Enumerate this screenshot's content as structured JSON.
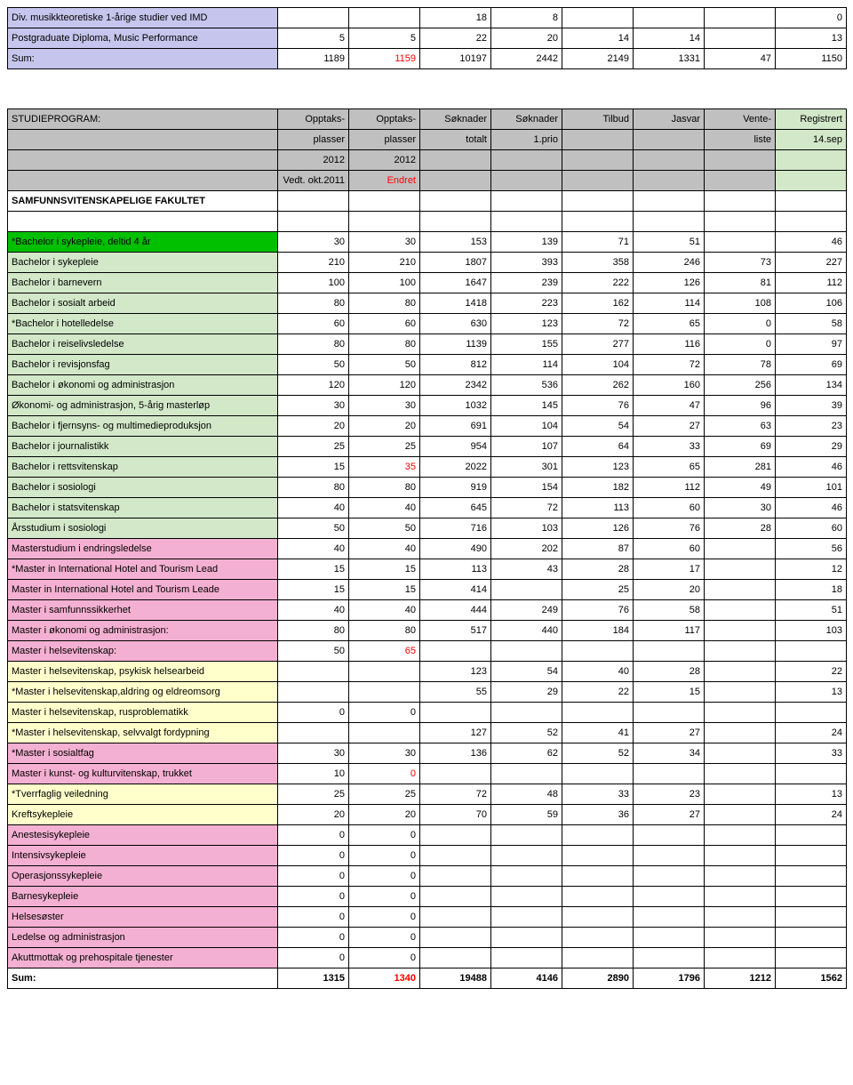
{
  "colors": {
    "lavender": "#c5c5ed",
    "grey": "#c0c0c0",
    "greenFull": "#d2e8c8",
    "greenBright": "#00c000",
    "cream": "#ffffcc",
    "pink": "#f4b0d2",
    "red": "#ff0000",
    "border": "#000000",
    "bg": "#ffffff"
  },
  "topSection": {
    "rows": [
      {
        "bg": "lavender",
        "label": "Div. musikkteoretiske 1-årige studier ved IMD",
        "cells": [
          "",
          "",
          "18",
          "8",
          "",
          "",
          "",
          "0"
        ]
      },
      {
        "bg": "lavender",
        "label": "Postgraduate Diploma, Music Performance",
        "cells": [
          "5",
          "5",
          "22",
          "20",
          "14",
          "14",
          "",
          "13"
        ]
      },
      {
        "bg": "lavender",
        "label": "Sum:",
        "cells": [
          "1189",
          "1159",
          "10197",
          "2442",
          "2149",
          "1331",
          "47",
          "1150"
        ],
        "redCols": [
          1
        ]
      }
    ]
  },
  "headerBlock": {
    "row1": {
      "label": "STUDIEPROGRAM:",
      "cells": [
        "Opptaks-",
        "Opptaks-",
        "Søknader",
        "Søknader",
        "Tilbud",
        "Jasvar",
        "Vente-",
        "Registrert"
      ]
    },
    "row2": {
      "label": "",
      "cells": [
        "plasser",
        "plasser",
        "totalt",
        "1.prio",
        "",
        "",
        "liste",
        "14.sep"
      ]
    },
    "row3": {
      "label": "",
      "cells": [
        "2012",
        "2012",
        "",
        "",
        "",
        "",
        "",
        ""
      ]
    },
    "row4": {
      "label": "",
      "cells": [
        "Vedt. okt.2011",
        "Endret",
        "",
        "",
        "",
        "",
        "",
        ""
      ]
    },
    "faculty": "SAMFUNNSVITENSKAPELIGE FAKULTET"
  },
  "mainRows": [
    {
      "bg": "green-bright",
      "label": "*Bachelor i sykepleie, deltid 4 år",
      "cells": [
        "30",
        "30",
        "153",
        "139",
        "71",
        "51",
        "",
        "46"
      ]
    },
    {
      "bg": "green-full",
      "label": "Bachelor i sykepleie",
      "cells": [
        "210",
        "210",
        "1807",
        "393",
        "358",
        "246",
        "73",
        "227"
      ]
    },
    {
      "bg": "green-full",
      "label": "Bachelor i barnevern",
      "cells": [
        "100",
        "100",
        "1647",
        "239",
        "222",
        "126",
        "81",
        "112"
      ]
    },
    {
      "bg": "green-full",
      "label": "Bachelor i sosialt arbeid",
      "cells": [
        "80",
        "80",
        "1418",
        "223",
        "162",
        "114",
        "108",
        "106"
      ]
    },
    {
      "bg": "green-full",
      "label": "*Bachelor i hotelledelse",
      "cells": [
        "60",
        "60",
        "630",
        "123",
        "72",
        "65",
        "0",
        "58"
      ]
    },
    {
      "bg": "green-full",
      "label": "Bachelor i reiselivsledelse",
      "cells": [
        "80",
        "80",
        "1139",
        "155",
        "277",
        "116",
        "0",
        "97"
      ]
    },
    {
      "bg": "green-full",
      "label": "Bachelor i revisjonsfag",
      "cells": [
        "50",
        "50",
        "812",
        "114",
        "104",
        "72",
        "78",
        "69"
      ]
    },
    {
      "bg": "green-full",
      "label": "Bachelor i økonomi og administrasjon",
      "cells": [
        "120",
        "120",
        "2342",
        "536",
        "262",
        "160",
        "256",
        "134"
      ]
    },
    {
      "bg": "green-full",
      "label": "Økonomi- og administrasjon, 5-årig masterløp",
      "cells": [
        "30",
        "30",
        "1032",
        "145",
        "76",
        "47",
        "96",
        "39"
      ]
    },
    {
      "bg": "green-full",
      "label": "Bachelor i fjernsyns- og multimedieproduksjon",
      "cells": [
        "20",
        "20",
        "691",
        "104",
        "54",
        "27",
        "63",
        "23"
      ]
    },
    {
      "bg": "green-full",
      "label": "Bachelor i journalistikk",
      "cells": [
        "25",
        "25",
        "954",
        "107",
        "64",
        "33",
        "69",
        "29"
      ]
    },
    {
      "bg": "green-full",
      "label": "Bachelor i rettsvitenskap",
      "cells": [
        "15",
        "35",
        "2022",
        "301",
        "123",
        "65",
        "281",
        "46"
      ],
      "redCols": [
        1
      ]
    },
    {
      "bg": "green-full",
      "label": "Bachelor i sosiologi",
      "cells": [
        "80",
        "80",
        "919",
        "154",
        "182",
        "112",
        "49",
        "101"
      ]
    },
    {
      "bg": "green-full",
      "label": "Bachelor i statsvitenskap",
      "cells": [
        "40",
        "40",
        "645",
        "72",
        "113",
        "60",
        "30",
        "46"
      ]
    },
    {
      "bg": "green-full",
      "label": "Årsstudium i sosiologi",
      "cells": [
        "50",
        "50",
        "716",
        "103",
        "126",
        "76",
        "28",
        "60"
      ]
    },
    {
      "bg": "pink",
      "label": "Masterstudium i endringsledelse",
      "cells": [
        "40",
        "40",
        "490",
        "202",
        "87",
        "60",
        "",
        "56"
      ]
    },
    {
      "bg": "pink",
      "label": "*Master in International Hotel and Tourism Lead",
      "cells": [
        "15",
        "15",
        "113",
        "43",
        "28",
        "17",
        "",
        "12"
      ]
    },
    {
      "bg": "pink",
      "label": "Master in International Hotel and Tourism Leade",
      "cells": [
        "15",
        "15",
        "414",
        "",
        "25",
        "20",
        "",
        "18"
      ]
    },
    {
      "bg": "pink",
      "label": "Master i samfunnssikkerhet",
      "cells": [
        "40",
        "40",
        "444",
        "249",
        "76",
        "58",
        "",
        "51"
      ]
    },
    {
      "bg": "pink",
      "label": "Master i økonomi og administrasjon:",
      "cells": [
        "80",
        "80",
        "517",
        "440",
        "184",
        "117",
        "",
        "103"
      ]
    },
    {
      "bg": "pink",
      "label": "Master i helsevitenskap:",
      "cells": [
        "50",
        "65",
        "",
        "",
        "",
        "",
        "",
        ""
      ],
      "redCols": [
        1
      ]
    },
    {
      "bg": "cream",
      "label": "Master i helsevitenskap, psykisk helsearbeid",
      "cells": [
        "",
        "",
        "123",
        "54",
        "40",
        "28",
        "",
        "22"
      ]
    },
    {
      "bg": "cream",
      "label": "*Master i helsevitenskap,aldring og eldreomsorg",
      "cells": [
        "",
        "",
        "55",
        "29",
        "22",
        "15",
        "",
        "13"
      ]
    },
    {
      "bg": "cream",
      "label": "Master i helsevitenskap, rusproblematikk",
      "cells": [
        "0",
        "0",
        "",
        "",
        "",
        "",
        "",
        ""
      ]
    },
    {
      "bg": "cream",
      "label": "*Master i helsevitenskap, selvvalgt fordypning",
      "cells": [
        "",
        "",
        "127",
        "52",
        "41",
        "27",
        "",
        "24"
      ]
    },
    {
      "bg": "pink",
      "label": "*Master i sosialtfag",
      "cells": [
        "30",
        "30",
        "136",
        "62",
        "52",
        "34",
        "",
        "33"
      ]
    },
    {
      "bg": "pink",
      "label": "Master i kunst- og kulturvitenskap, trukket",
      "cells": [
        "10",
        "0",
        "",
        "",
        "",
        "",
        "",
        ""
      ],
      "redCols": [
        1
      ]
    },
    {
      "bg": "cream",
      "label": "*Tverrfaglig veiledning",
      "cells": [
        "25",
        "25",
        "72",
        "48",
        "33",
        "23",
        "",
        "13"
      ]
    },
    {
      "bg": "cream",
      "label": "Kreftsykepleie",
      "cells": [
        "20",
        "20",
        "70",
        "59",
        "36",
        "27",
        "",
        "24"
      ]
    },
    {
      "bg": "pink",
      "label": "Anestesisykepleie",
      "cells": [
        "0",
        "0",
        "",
        "",
        "",
        "",
        "",
        ""
      ]
    },
    {
      "bg": "pink",
      "label": "Intensivsykepleie",
      "cells": [
        "0",
        "0",
        "",
        "",
        "",
        "",
        "",
        ""
      ]
    },
    {
      "bg": "pink",
      "label": "Operasjonssykepleie",
      "cells": [
        "0",
        "0",
        "",
        "",
        "",
        "",
        "",
        ""
      ]
    },
    {
      "bg": "pink",
      "label": "Barnesykepleie",
      "cells": [
        "0",
        "0",
        "",
        "",
        "",
        "",
        "",
        ""
      ]
    },
    {
      "bg": "pink",
      "label": "Helsesøster",
      "cells": [
        "0",
        "0",
        "",
        "",
        "",
        "",
        "",
        ""
      ]
    },
    {
      "bg": "pink",
      "label": "Ledelse og administrasjon",
      "cells": [
        "0",
        "0",
        "",
        "",
        "",
        "",
        "",
        ""
      ]
    },
    {
      "bg": "pink",
      "label": "Akuttmottak og prehospitale tjenester",
      "cells": [
        "0",
        "0",
        "",
        "",
        "",
        "",
        "",
        ""
      ]
    }
  ],
  "sumRow": {
    "label": "Sum:",
    "cells": [
      "1315",
      "1340",
      "19488",
      "4146",
      "2890",
      "1796",
      "1212",
      "1562"
    ],
    "redCols": [
      1
    ]
  }
}
